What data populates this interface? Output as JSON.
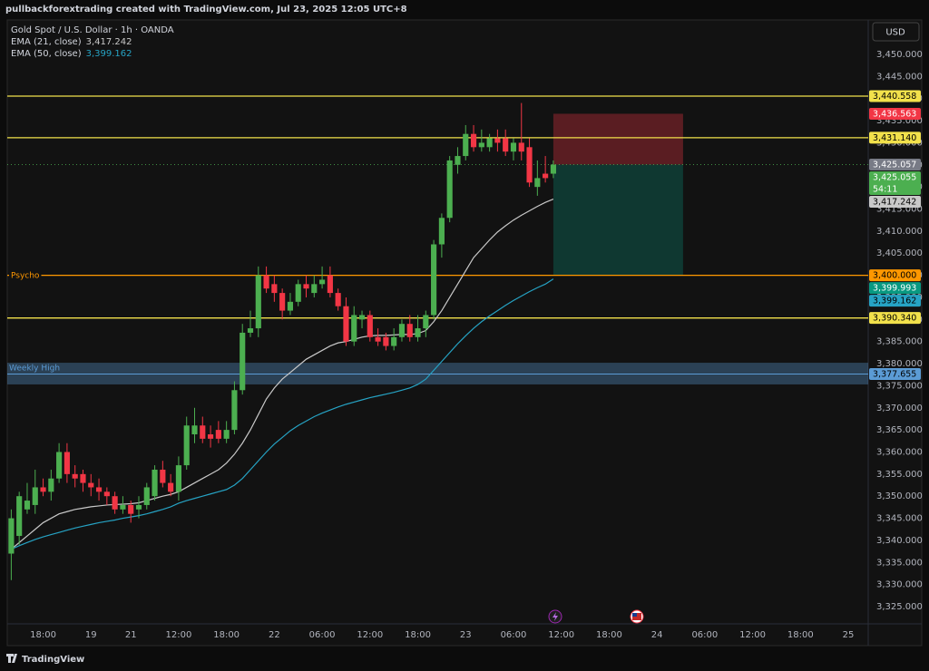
{
  "header": {
    "caption": "pullbackforextrading created with TradingView.com, Jul 23, 2025 12:05 UTC+8"
  },
  "footer": {
    "brand": "TradingView"
  },
  "currency_button": "USD",
  "chart_data": {
    "type": "candlestick",
    "title": "Gold Spot / U.S. Dollar · 1h · OANDA",
    "categories": [
      null,
      null,
      null,
      null,
      "18:00",
      null,
      null,
      null,
      null,
      null,
      "19",
      null,
      null,
      null,
      null,
      "21",
      null,
      null,
      null,
      null,
      null,
      "12:00",
      null,
      null,
      null,
      null,
      null,
      "18:00",
      null,
      null,
      null,
      null,
      null,
      "22",
      null,
      null,
      null,
      null,
      null,
      "06:00",
      null,
      null,
      null,
      null,
      null,
      "12:00",
      null,
      null,
      null,
      null,
      null,
      "18:00",
      null,
      null,
      null,
      null,
      null,
      "23",
      null,
      null,
      null,
      null,
      null,
      "06:00",
      null,
      null,
      null,
      null,
      null,
      "12:00",
      null,
      null,
      null,
      null,
      null,
      "18:00",
      null,
      null,
      null,
      null,
      null,
      "24",
      null,
      null,
      null,
      null,
      null,
      "06:00",
      null,
      null,
      null,
      null,
      null,
      "12:00",
      null,
      null,
      null,
      null,
      null,
      "18:00",
      null,
      null,
      null,
      null,
      null,
      "25",
      null,
      null
    ],
    "open": [
      3337,
      3341,
      3347,
      3348,
      3352,
      3351,
      3354,
      3360,
      3355,
      3355,
      3353,
      3352,
      3351,
      3350,
      3347,
      3348,
      3347,
      3348,
      3350,
      3356,
      3353,
      3351,
      3357,
      3364,
      3366,
      3364,
      3365,
      3363,
      3365,
      3374,
      3387,
      3388,
      3400,
      3398,
      3396,
      3392,
      3394,
      3398,
      3396,
      3398,
      3400,
      3396,
      3393,
      3385,
      3390,
      3391,
      3386,
      3386,
      3384,
      3386,
      3389,
      3386,
      3388,
      3391,
      3407,
      3413,
      3425,
      3427,
      3432,
      3429,
      3429,
      3431,
      3431,
      3428,
      3430,
      3429,
      3420,
      3423,
      3423,
      null,
      null,
      null,
      null,
      null,
      null,
      null,
      null,
      null,
      null,
      null,
      null,
      null,
      null,
      null,
      null,
      null,
      null,
      null,
      null,
      null,
      null,
      null,
      null,
      null,
      null,
      null,
      null,
      null,
      null,
      null,
      null,
      null,
      null,
      null,
      null,
      null,
      null,
      null
    ],
    "high": [
      3347,
      3351,
      3353,
      3356,
      3354,
      3356,
      3362,
      3362,
      3357,
      3356,
      3355,
      3354,
      3352,
      3351,
      3350,
      3349,
      3350,
      3353,
      3357,
      3358,
      3355,
      3359,
      3368,
      3370,
      3368,
      3366,
      3367,
      3367,
      3376,
      3389,
      3392,
      3402,
      3402,
      3400,
      3397,
      3396,
      3399,
      3400,
      3400,
      3402,
      3402,
      3397,
      3395,
      3393,
      3392,
      3392,
      3388,
      3387,
      3388,
      3390,
      3391,
      3391,
      3392,
      3408,
      3414,
      3427,
      3429,
      3434,
      3434,
      3433,
      3432,
      3433,
      3433,
      3431,
      3439,
      3431,
      3426,
      3427,
      3426,
      null,
      null,
      null,
      null,
      null,
      null,
      null,
      null,
      null,
      null,
      null,
      null,
      null,
      null,
      null,
      null,
      null,
      null,
      null,
      null,
      null,
      null,
      null,
      null,
      null,
      null,
      null,
      null,
      null,
      null,
      null,
      null,
      null,
      null,
      null,
      null,
      null,
      null,
      null
    ],
    "low": [
      3331,
      3339,
      3346,
      3346,
      3350,
      3349,
      3353,
      3353,
      3352,
      3351,
      3350,
      3349,
      3348,
      3346,
      3346,
      3344,
      3345,
      3347,
      3349,
      3352,
      3350,
      3349,
      3356,
      3362,
      3362,
      3361,
      3362,
      3362,
      3364,
      3373,
      3386,
      3386,
      3396,
      3394,
      3390,
      3391,
      3393,
      3395,
      3395,
      3397,
      3395,
      3392,
      3384,
      3384,
      3388,
      3385,
      3384,
      3383,
      3383,
      3385,
      3385,
      3385,
      3386,
      3390,
      3404,
      3412,
      3423,
      3426,
      3428,
      3428,
      3428,
      3428,
      3427,
      3426,
      3426,
      3420,
      3418,
      3421,
      3422,
      null,
      null,
      null,
      null,
      null,
      null,
      null,
      null,
      null,
      null,
      null,
      null,
      null,
      null,
      null,
      null,
      null,
      null,
      null,
      null,
      null,
      null,
      null,
      null,
      null,
      null,
      null,
      null,
      null,
      null,
      null,
      null,
      null,
      null,
      null,
      null,
      null,
      null,
      null
    ],
    "close": [
      3345,
      3350,
      3349,
      3352,
      3351,
      3354,
      3360,
      3355,
      3354,
      3353,
      3352,
      3351,
      3350,
      3347,
      3348,
      3346,
      3348,
      3352,
      3356,
      3353,
      3351,
      3357,
      3366,
      3366,
      3363,
      3363,
      3363,
      3365,
      3374,
      3387,
      3388,
      3400,
      3397,
      3396,
      3392,
      3394,
      3398,
      3397,
      3398,
      3399,
      3396,
      3393,
      3385,
      3391,
      3391,
      3386,
      3385,
      3384,
      3386,
      3389,
      3386,
      3388,
      3391,
      3407,
      3413,
      3426,
      3427,
      3432,
      3429,
      3430,
      3431,
      3430,
      3428,
      3430,
      3428,
      3421,
      3422,
      3422,
      3425.055,
      null,
      null,
      null,
      null,
      null,
      null,
      null,
      null,
      null,
      null,
      null,
      null,
      null,
      null,
      null,
      null,
      null,
      null,
      null,
      null,
      null,
      null,
      null,
      null,
      null,
      null,
      null,
      null,
      null,
      null,
      null,
      null,
      null,
      null,
      null,
      null,
      null,
      null,
      null
    ],
    "up_color": "#4caf50",
    "down_color": "#f23645",
    "last_price_label": "3,425.055",
    "countdown": "54:11",
    "ylim": [
      3321.1,
      3457.8
    ],
    "yticks": [
      {
        "value": 3325,
        "label": "3,325.000"
      },
      {
        "value": 3330,
        "label": "3,330.000"
      },
      {
        "value": 3335,
        "label": "3,335.000"
      },
      {
        "value": 3340,
        "label": "3,340.000"
      },
      {
        "value": 3345,
        "label": "3,345.000"
      },
      {
        "value": 3350,
        "label": "3,350.000"
      },
      {
        "value": 3355,
        "label": "3,355.000"
      },
      {
        "value": 3360,
        "label": "3,360.000"
      },
      {
        "value": 3365,
        "label": "3,365.000"
      },
      {
        "value": 3370,
        "label": "3,370.000"
      },
      {
        "value": 3375,
        "label": "3,375.000"
      },
      {
        "value": 3380,
        "label": "3,380.000"
      },
      {
        "value": 3385,
        "label": "3,385.000"
      },
      {
        "value": 3390,
        "label": "3,390.000"
      },
      {
        "value": 3395,
        "label": "3,395.000"
      },
      {
        "value": 3400,
        "label": "3,400.000"
      },
      {
        "value": 3405,
        "label": "3,405.000"
      },
      {
        "value": 3410,
        "label": "3,410.000"
      },
      {
        "value": 3415,
        "label": "3,415.000"
      },
      {
        "value": 3420,
        "label": "3,420.000"
      },
      {
        "value": 3425,
        "label": "3,425.000"
      },
      {
        "value": 3430,
        "label": "3,430.000"
      },
      {
        "value": 3435,
        "label": "3,435.000"
      },
      {
        "value": 3440,
        "label": "3,440.000"
      },
      {
        "value": 3445,
        "label": "3,445.000"
      },
      {
        "value": 3450,
        "label": "3,450.000"
      }
    ],
    "indicators": [
      {
        "name": "EMA (21, close)",
        "color": "#c9c9c9",
        "value_label": "3,417.242",
        "values": [
          3338,
          3339.5,
          3341,
          3342.5,
          3344,
          3345,
          3346,
          3346.5,
          3347,
          3347.3,
          3347.6,
          3347.8,
          3348,
          3348.1,
          3348.2,
          3348.3,
          3348.5,
          3349,
          3349.5,
          3350,
          3350.4,
          3351,
          3352,
          3353,
          3354,
          3355,
          3356,
          3357.5,
          3359.5,
          3362,
          3365,
          3368.5,
          3372,
          3374.5,
          3376.5,
          3378,
          3379.5,
          3381,
          3382,
          3383,
          3384,
          3384.7,
          3385,
          3385.5,
          3386,
          3386.3,
          3386.4,
          3386.4,
          3386.5,
          3386.6,
          3386.6,
          3386.8,
          3387.5,
          3389.5,
          3392,
          3395,
          3398,
          3401,
          3404,
          3406,
          3408,
          3409.8,
          3411.2,
          3412.5,
          3413.6,
          3414.6,
          3415.6,
          3416.5,
          3417.242,
          null,
          null,
          null,
          null,
          null,
          null,
          null,
          null,
          null,
          null,
          null,
          null,
          null,
          null,
          null,
          null,
          null,
          null,
          null,
          null,
          null,
          null,
          null,
          null,
          null,
          null,
          null,
          null,
          null,
          null,
          null,
          null,
          null,
          null,
          null,
          null,
          null,
          null,
          null
        ]
      },
      {
        "name": "EMA (50, close)",
        "color": "#26a3c4",
        "value_label": "3,399.162",
        "values": [
          3338,
          3338.8,
          3339.5,
          3340.2,
          3340.8,
          3341.3,
          3341.8,
          3342.3,
          3342.8,
          3343.2,
          3343.6,
          3344,
          3344.3,
          3344.6,
          3345,
          3345.3,
          3345.6,
          3346,
          3346.5,
          3347,
          3347.6,
          3348.4,
          3349,
          3349.5,
          3350,
          3350.5,
          3351,
          3351.5,
          3352.5,
          3354,
          3356,
          3358,
          3360,
          3361.8,
          3363.3,
          3364.8,
          3366,
          3367,
          3368,
          3368.8,
          3369.5,
          3370.2,
          3370.8,
          3371.3,
          3371.8,
          3372.3,
          3372.7,
          3373.1,
          3373.5,
          3374,
          3374.5,
          3375.3,
          3376.5,
          3378.5,
          3380.5,
          3382.5,
          3384.5,
          3386.3,
          3388,
          3389.5,
          3390.8,
          3392,
          3393.2,
          3394.3,
          3395.3,
          3396.3,
          3397.2,
          3398,
          3399.162,
          null,
          null,
          null,
          null,
          null,
          null,
          null,
          null,
          null,
          null,
          null,
          null,
          null,
          null,
          null,
          null,
          null,
          null,
          null,
          null,
          null,
          null,
          null,
          null,
          null,
          null,
          null,
          null,
          null,
          null,
          null,
          null,
          null,
          null,
          null,
          null,
          null,
          null,
          null
        ]
      }
    ],
    "levels": [
      {
        "value": 3440.558,
        "label": "3,440.558",
        "color": "#f2e14b"
      },
      {
        "value": 3431.14,
        "label": "3,431.140",
        "color": "#f2e14b"
      },
      {
        "value": 3400,
        "label": "3,400.000",
        "color": "#ff9800",
        "name": "Psycho"
      },
      {
        "value": 3390.34,
        "label": "3,390.340",
        "color": "#f2e14b"
      }
    ],
    "zone": {
      "name": "Weekly High",
      "from": 3375.3,
      "to": 3380.2,
      "value": 3377.655,
      "label": "3,377.655",
      "color": "#5b9bd5"
    },
    "position": {
      "stop": 3436.563,
      "stop_label": "3,436.563",
      "entry": 3425.057,
      "entry_label": "3,425.057",
      "target": 3399.993,
      "target_label": "3,399.993"
    }
  }
}
